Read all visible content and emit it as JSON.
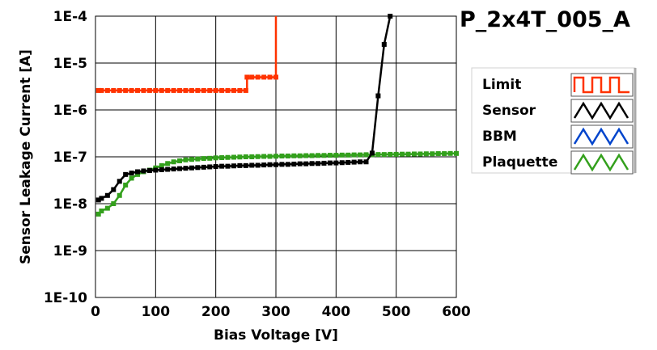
{
  "chart_data": {
    "type": "line",
    "title": "P_2x4T_005_A",
    "xlabel": "Bias Voltage [V]",
    "ylabel": "Sensor Leakage Current [A]",
    "xlim": [
      0,
      600
    ],
    "ylim": [
      1e-10,
      0.0001
    ],
    "yscale": "log",
    "grid": true,
    "legend_position": "right",
    "x_ticks": [
      0,
      100,
      200,
      300,
      400,
      500,
      600
    ],
    "x_tick_labels": [
      "0",
      "100",
      "200",
      "300",
      "400",
      "500",
      "600"
    ],
    "y_ticks": [
      1e-10,
      1e-09,
      1e-08,
      1e-07,
      1e-06,
      1e-05,
      0.0001
    ],
    "y_tick_labels": [
      "1E-10",
      "1E-9",
      "1E-8",
      "1E-7",
      "1E-6",
      "1E-5",
      "1E-4"
    ],
    "series": [
      {
        "name": "Limit",
        "color": "#ff3300",
        "marker": "square",
        "x": [
          5,
          10,
          20,
          30,
          40,
          50,
          60,
          70,
          80,
          90,
          100,
          110,
          120,
          130,
          140,
          150,
          160,
          170,
          180,
          190,
          200,
          210,
          220,
          230,
          240,
          250,
          252,
          260,
          270,
          280,
          290,
          300,
          300
        ],
        "y": [
          2.6e-06,
          2.6e-06,
          2.6e-06,
          2.6e-06,
          2.6e-06,
          2.6e-06,
          2.6e-06,
          2.6e-06,
          2.6e-06,
          2.6e-06,
          2.6e-06,
          2.6e-06,
          2.6e-06,
          2.6e-06,
          2.6e-06,
          2.6e-06,
          2.6e-06,
          2.6e-06,
          2.6e-06,
          2.6e-06,
          2.6e-06,
          2.6e-06,
          2.6e-06,
          2.6e-06,
          2.6e-06,
          2.6e-06,
          5e-06,
          5e-06,
          5e-06,
          5e-06,
          5e-06,
          5e-06,
          0.0001
        ],
        "marker_count": 31
      },
      {
        "name": "Sensor",
        "color": "#000000",
        "marker": "square",
        "x": [
          5,
          10,
          20,
          30,
          40,
          50,
          60,
          70,
          80,
          90,
          100,
          110,
          120,
          130,
          140,
          150,
          160,
          170,
          180,
          190,
          200,
          210,
          220,
          230,
          240,
          250,
          260,
          270,
          280,
          290,
          300,
          310,
          320,
          330,
          340,
          350,
          360,
          370,
          380,
          390,
          400,
          410,
          420,
          430,
          440,
          450,
          460,
          470,
          480,
          490
        ],
        "y": [
          1.2e-08,
          1.3e-08,
          1.5e-08,
          2e-08,
          3e-08,
          4.2e-08,
          4.5e-08,
          4.8e-08,
          5e-08,
          5.1e-08,
          5.2e-08,
          5.3e-08,
          5.4e-08,
          5.5e-08,
          5.6e-08,
          5.7e-08,
          5.8e-08,
          5.9e-08,
          6e-08,
          6.1e-08,
          6.2e-08,
          6.3e-08,
          6.3e-08,
          6.4e-08,
          6.5e-08,
          6.5e-08,
          6.6e-08,
          6.6e-08,
          6.7e-08,
          6.8e-08,
          6.8e-08,
          6.9e-08,
          6.9e-08,
          7e-08,
          7.1e-08,
          7.1e-08,
          7.2e-08,
          7.2e-08,
          7.3e-08,
          7.4e-08,
          7.4e-08,
          7.5e-08,
          7.6e-08,
          7.7e-08,
          7.8e-08,
          7.8e-08,
          1.2e-07,
          2e-06,
          2.5e-05,
          0.0001
        ]
      },
      {
        "name": "BBM",
        "color": "#0044cc",
        "marker": "square",
        "x": [],
        "y": []
      },
      {
        "name": "Plaquette",
        "color": "#33a01c",
        "marker": "square",
        "x": [
          5,
          10,
          20,
          30,
          40,
          50,
          60,
          70,
          80,
          90,
          100,
          110,
          120,
          130,
          140,
          150,
          160,
          170,
          180,
          190,
          200,
          210,
          220,
          230,
          240,
          250,
          260,
          270,
          280,
          290,
          300,
          310,
          320,
          330,
          340,
          350,
          360,
          370,
          380,
          390,
          400,
          410,
          420,
          430,
          440,
          450,
          460,
          470,
          480,
          490,
          500,
          510,
          520,
          530,
          540,
          550,
          560,
          570,
          580,
          590,
          600
        ],
        "y": [
          6e-09,
          7e-09,
          8e-09,
          1e-08,
          1.5e-08,
          2.5e-08,
          3.5e-08,
          4.2e-08,
          4.8e-08,
          5.2e-08,
          5.8e-08,
          6.5e-08,
          7.2e-08,
          7.8e-08,
          8.2e-08,
          8.6e-08,
          8.8e-08,
          9e-08,
          9.2e-08,
          9.3e-08,
          9.5e-08,
          9.6e-08,
          9.7e-08,
          9.8e-08,
          9.9e-08,
          1e-07,
          1e-07,
          1.01e-07,
          1.02e-07,
          1.02e-07,
          1.03e-07,
          1.04e-07,
          1.04e-07,
          1.05e-07,
          1.05e-07,
          1.06e-07,
          1.06e-07,
          1.07e-07,
          1.07e-07,
          1.08e-07,
          1.08e-07,
          1.09e-07,
          1.09e-07,
          1.1e-07,
          1.1e-07,
          1.11e-07,
          1.11e-07,
          1.12e-07,
          1.12e-07,
          1.13e-07,
          1.13e-07,
          1.14e-07,
          1.14e-07,
          1.15e-07,
          1.15e-07,
          1.16e-07,
          1.16e-07,
          1.17e-07,
          1.17e-07,
          1.18e-07,
          1.18e-07
        ]
      }
    ]
  }
}
